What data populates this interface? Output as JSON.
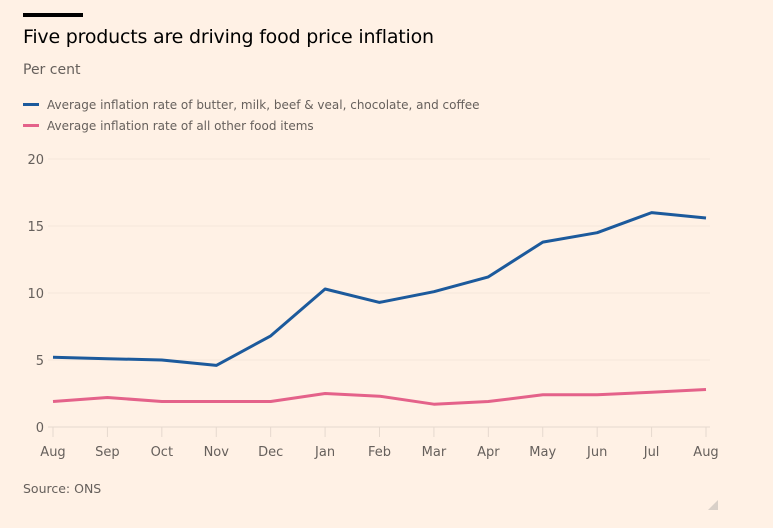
{
  "header": {
    "title": "Five products are driving food price inflation",
    "subtitle": "Per cent"
  },
  "legend": [
    {
      "label": "Average inflation rate of butter, milk, beef & veal, chocolate, and coffee",
      "color": "#1c5a9c"
    },
    {
      "label": "Average inflation rate of all other food items",
      "color": "#e4628a"
    }
  ],
  "footer": {
    "source": "Source: ONS"
  },
  "chart_data": {
    "type": "line",
    "title": "Five products are driving food price inflation",
    "ylabel": "Per cent",
    "xlabel": "",
    "x": [
      "Aug",
      "Sep",
      "Oct",
      "Nov",
      "Dec",
      "Jan",
      "Feb",
      "Mar",
      "Apr",
      "May",
      "Jun",
      "Jul",
      "Aug"
    ],
    "ylim": [
      0,
      20
    ],
    "yticks": [
      0,
      5,
      10,
      15,
      20
    ],
    "grid": true,
    "legend_position": "top-left",
    "series": [
      {
        "name": "Average inflation rate of butter, milk, beef & veal, chocolate, and coffee",
        "color": "#1c5a9c",
        "values": [
          5.2,
          5.1,
          5.0,
          4.6,
          6.8,
          10.3,
          9.3,
          10.1,
          11.2,
          13.8,
          14.5,
          16.0,
          15.6
        ]
      },
      {
        "name": "Average inflation rate of all other food items",
        "color": "#e4628a",
        "values": [
          1.9,
          2.2,
          1.9,
          1.9,
          1.9,
          2.5,
          2.3,
          1.7,
          1.9,
          2.4,
          2.4,
          2.6,
          2.8
        ]
      }
    ]
  }
}
